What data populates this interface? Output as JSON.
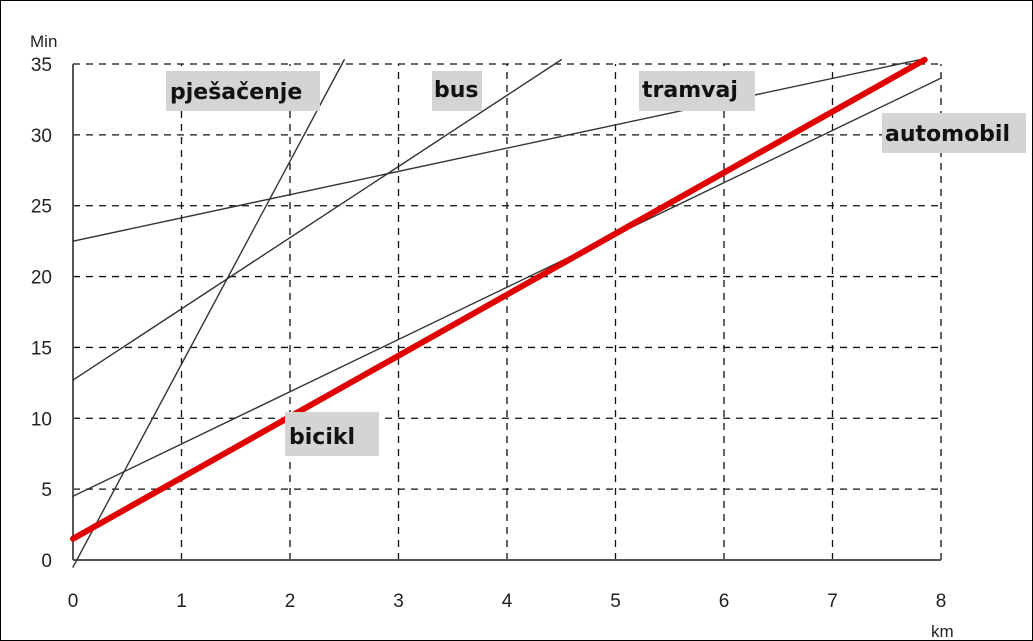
{
  "chart_data": {
    "type": "line",
    "ylabel": "Min",
    "xlabel": "km",
    "xlim": [
      0,
      8
    ],
    "ylim": [
      0,
      35
    ],
    "x_ticks": [
      0,
      1,
      2,
      3,
      4,
      5,
      6,
      7,
      8
    ],
    "y_ticks": [
      0,
      5,
      10,
      15,
      20,
      25,
      30,
      35
    ],
    "grid": true,
    "grid_style": "dashed",
    "series": [
      {
        "name": "pješačenje",
        "color": "#333333",
        "x": [
          0.0,
          2.5
        ],
        "y": [
          -0.5,
          35.3
        ]
      },
      {
        "name": "bus",
        "color": "#333333",
        "x": [
          0.0,
          4.5
        ],
        "y": [
          12.7,
          35.3
        ]
      },
      {
        "name": "tramvaj",
        "color": "#333333",
        "x": [
          0.0,
          7.8
        ],
        "y": [
          22.5,
          35.3
        ]
      },
      {
        "name": "automobil",
        "color": "#333333",
        "x": [
          0.0,
          8.0
        ],
        "y": [
          4.5,
          34.0
        ]
      },
      {
        "name": "bicikl",
        "color": "#e00000",
        "x": [
          0.0,
          7.85
        ],
        "y": [
          1.5,
          35.3
        ]
      }
    ],
    "label_texts": {
      "pjesacenje": "pješačenje",
      "bus": "bus",
      "tramvaj": "tramvaj",
      "automobil": "automobil",
      "bicikl": "bicikl"
    }
  }
}
